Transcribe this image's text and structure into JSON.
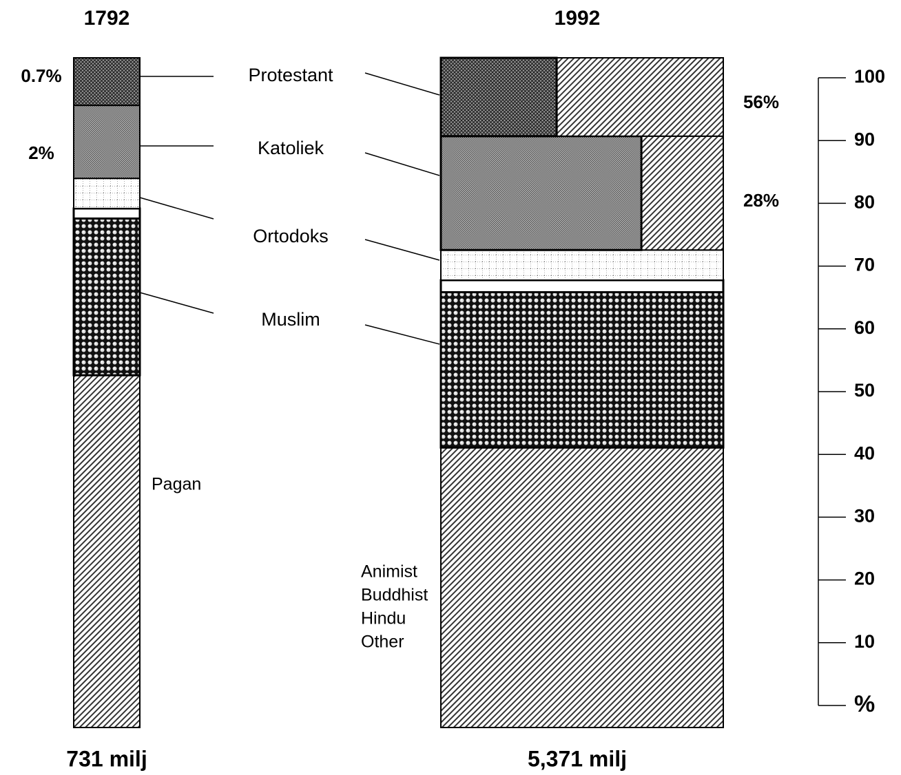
{
  "chart_data": {
    "type": "stacked_bar",
    "categories": [
      "1792",
      "1992"
    ],
    "totals": [
      "731 milj",
      "5,371 milj"
    ],
    "series": [
      {
        "labels": [
          [
            "Pagan"
          ],
          [
            "Animist",
            "Buddhist",
            "Hindu",
            "Other"
          ]
        ],
        "pattern": "diag",
        "values": [
          52.6,
          41.8
        ]
      },
      {
        "name": "Muslim",
        "pattern": "dots",
        "values": [
          23.4,
          23.2
        ]
      },
      {
        "pattern": "white",
        "values": [
          1.5,
          1.8
        ]
      },
      {
        "name": "Ortodoks",
        "pattern": "grid",
        "values": [
          4.5,
          4.5
        ]
      },
      {
        "name": "Katoliek",
        "pattern": "fine",
        "values": [
          10.9,
          17.0
        ],
        "shaded": [
          null,
          71
        ],
        "side_labels": [
          "2%",
          "28%"
        ]
      },
      {
        "name": "Protestant",
        "pattern": "cross",
        "values": [
          7.1,
          11.7
        ],
        "shaded": [
          null,
          41
        ],
        "side_labels": [
          "0.7%",
          "56%"
        ]
      }
    ],
    "ylim": [
      0,
      100
    ],
    "yticks": [
      {
        "value": 0,
        "label": "%"
      },
      10,
      20,
      30,
      40,
      50,
      60,
      70,
      80,
      90,
      100
    ]
  }
}
